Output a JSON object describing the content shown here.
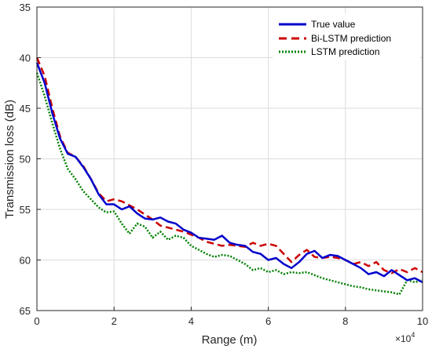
{
  "chart_data": {
    "type": "line",
    "title": "",
    "xlabel": "Range (m)",
    "ylabel": "Transmission loss (dB)",
    "x_exponent_label": "×10",
    "x_exponent_power": "4",
    "xlim": [
      0,
      10
    ],
    "ylim": [
      35,
      65
    ],
    "y_reversed": true,
    "x_ticks": [
      0,
      2,
      4,
      6,
      8,
      10
    ],
    "y_ticks": [
      35,
      40,
      45,
      50,
      55,
      60,
      65
    ],
    "grid": true,
    "legend_position": "top-right",
    "series": [
      {
        "name": "True value",
        "color": "#0000cc",
        "style": "solid",
        "x": [
          0.0,
          0.2,
          0.4,
          0.6,
          0.8,
          1.0,
          1.2,
          1.4,
          1.6,
          1.8,
          2.0,
          2.2,
          2.4,
          2.6,
          2.8,
          3.0,
          3.2,
          3.4,
          3.6,
          3.8,
          4.0,
          4.2,
          4.4,
          4.6,
          4.8,
          5.0,
          5.2,
          5.4,
          5.6,
          5.8,
          6.0,
          6.2,
          6.4,
          6.6,
          6.8,
          7.0,
          7.2,
          7.4,
          7.6,
          7.8,
          8.0,
          8.2,
          8.4,
          8.6,
          8.8,
          9.0,
          9.2,
          9.4,
          9.6,
          9.8,
          10.0
        ],
        "y": [
          40.5,
          42.5,
          45.5,
          48.0,
          49.5,
          49.8,
          50.8,
          52.0,
          53.5,
          54.5,
          54.5,
          55.0,
          54.7,
          55.4,
          55.9,
          56.0,
          55.8,
          56.2,
          56.4,
          57.0,
          57.3,
          57.8,
          57.9,
          58.0,
          57.6,
          58.3,
          58.5,
          58.6,
          59.2,
          59.4,
          60.0,
          59.8,
          60.4,
          60.8,
          60.2,
          59.4,
          59.1,
          59.8,
          59.5,
          59.6,
          60.0,
          60.4,
          60.8,
          61.4,
          61.2,
          61.6,
          61.0,
          61.5,
          62.0,
          61.8,
          62.2
        ]
      },
      {
        "name": "Bi-LSTM prediction",
        "color": "#cc0000",
        "style": "dashed",
        "x": [
          0.0,
          0.2,
          0.4,
          0.6,
          0.8,
          1.0,
          1.2,
          1.4,
          1.6,
          1.8,
          2.0,
          2.2,
          2.4,
          2.6,
          2.8,
          3.0,
          3.2,
          3.4,
          3.6,
          3.8,
          4.0,
          4.2,
          4.4,
          4.6,
          4.8,
          5.0,
          5.2,
          5.4,
          5.6,
          5.8,
          6.0,
          6.2,
          6.4,
          6.6,
          6.8,
          7.0,
          7.2,
          7.4,
          7.6,
          7.8,
          8.0,
          8.2,
          8.4,
          8.6,
          8.8,
          9.0,
          9.2,
          9.4,
          9.6,
          9.8,
          10.0
        ],
        "y": [
          40.0,
          41.8,
          45.0,
          47.8,
          49.4,
          49.8,
          50.7,
          52.0,
          53.4,
          54.2,
          54.0,
          54.2,
          54.6,
          55.0,
          55.5,
          56.0,
          56.6,
          56.8,
          57.0,
          57.2,
          57.5,
          57.8,
          58.2,
          58.4,
          58.6,
          58.5,
          58.6,
          58.7,
          58.3,
          58.6,
          58.4,
          58.6,
          59.4,
          60.2,
          59.5,
          59.0,
          59.7,
          59.8,
          59.7,
          59.8,
          60.0,
          60.4,
          60.2,
          60.6,
          60.2,
          61.0,
          61.3,
          60.9,
          61.2,
          60.8,
          61.2
        ]
      },
      {
        "name": "LSTM prediction",
        "color": "#008000",
        "style": "dotted",
        "x": [
          0.0,
          0.2,
          0.4,
          0.6,
          0.8,
          1.0,
          1.2,
          1.4,
          1.6,
          1.8,
          2.0,
          2.2,
          2.4,
          2.6,
          2.8,
          3.0,
          3.2,
          3.4,
          3.6,
          3.8,
          4.0,
          4.2,
          4.4,
          4.6,
          4.8,
          5.0,
          5.2,
          5.4,
          5.6,
          5.8,
          6.0,
          6.2,
          6.4,
          6.6,
          6.8,
          7.0,
          7.2,
          7.4,
          7.6,
          7.8,
          8.0,
          8.2,
          8.4,
          8.6,
          8.8,
          9.0,
          9.2,
          9.4,
          9.6,
          9.8,
          10.0
        ],
        "y": [
          41.5,
          43.8,
          46.5,
          49.0,
          51.0,
          52.0,
          53.2,
          54.0,
          54.8,
          55.3,
          55.2,
          56.4,
          57.4,
          56.4,
          56.7,
          57.8,
          57.2,
          58.0,
          57.6,
          57.8,
          58.6,
          59.0,
          59.4,
          59.7,
          59.5,
          59.6,
          60.0,
          60.4,
          61.0,
          60.8,
          61.2,
          61.0,
          61.4,
          61.2,
          61.3,
          61.2,
          61.5,
          61.8,
          62.0,
          62.2,
          62.4,
          62.6,
          62.7,
          62.9,
          63.0,
          63.1,
          63.2,
          63.4,
          62.0,
          62.2,
          62.0
        ]
      }
    ]
  }
}
